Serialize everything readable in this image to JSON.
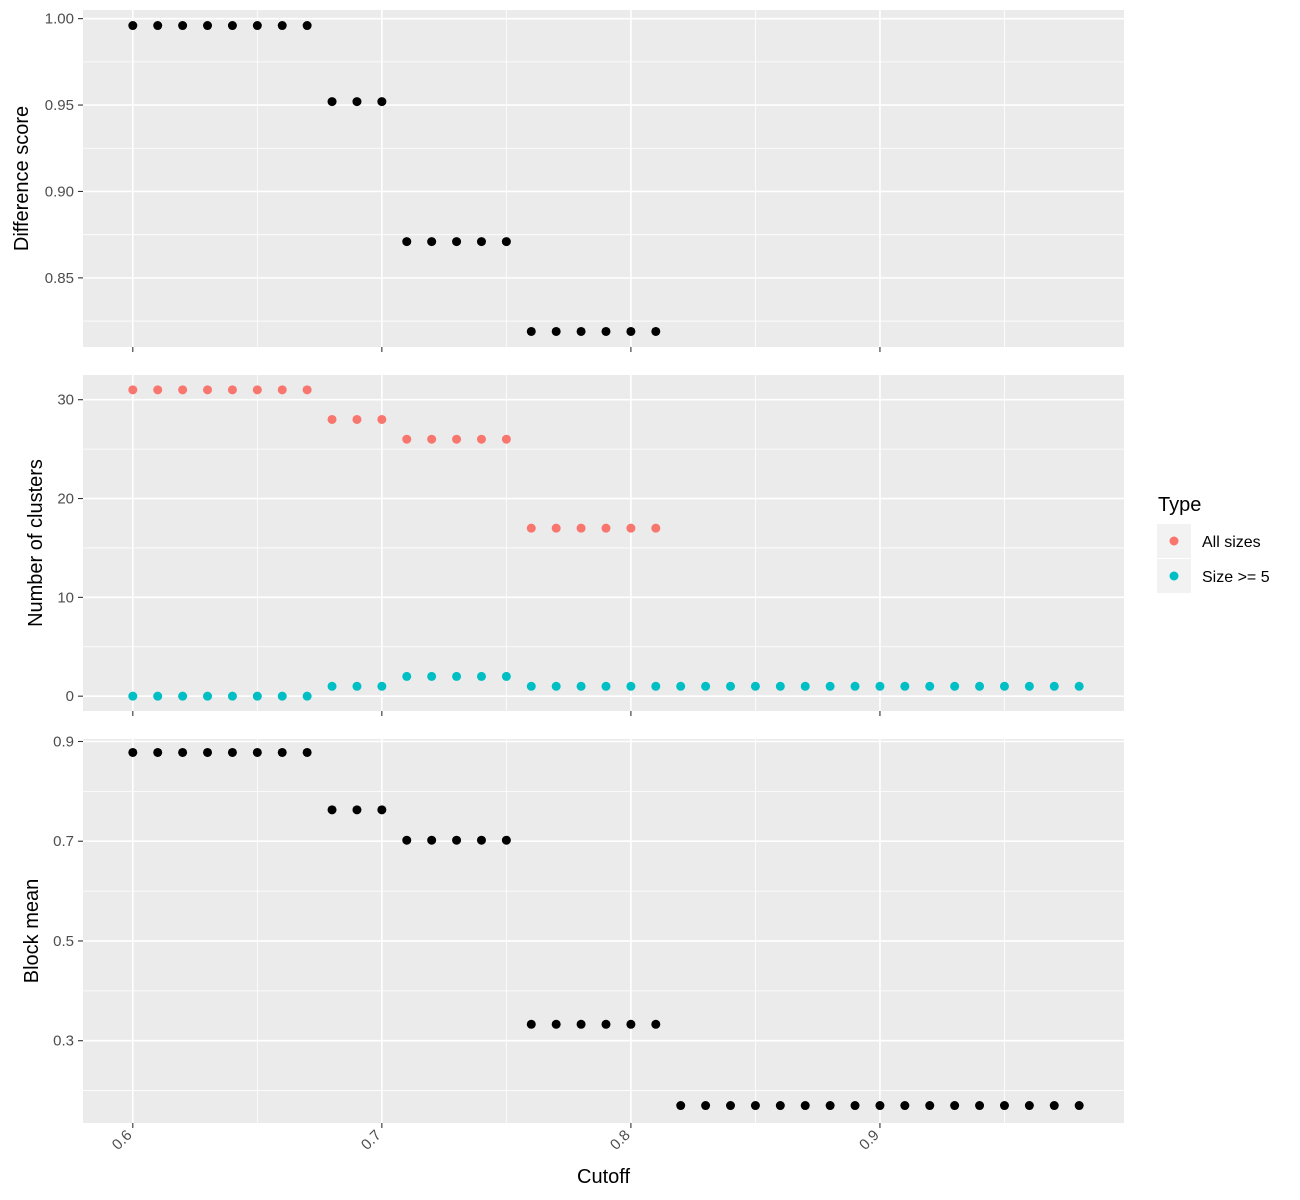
{
  "chart_data": [
    {
      "type": "scatter",
      "ylabel": "Difference score",
      "xlim": [
        0.58,
        0.998
      ],
      "ylim": [
        0.81,
        1.005
      ],
      "x_ticks": [
        "0.6",
        "0.7",
        "0.8",
        "0.9"
      ],
      "y_ticks": [
        "0.85",
        "0.90",
        "0.95",
        "1.00"
      ],
      "grid": true,
      "series": [
        {
          "color": "#000000",
          "x": [
            0.6,
            0.61,
            0.62,
            0.63,
            0.64,
            0.65,
            0.66,
            0.67,
            0.68,
            0.69,
            0.7,
            0.71,
            0.72,
            0.73,
            0.74,
            0.75,
            0.76,
            0.77,
            0.78,
            0.79,
            0.8,
            0.81
          ],
          "y": [
            0.996,
            0.996,
            0.996,
            0.996,
            0.996,
            0.996,
            0.996,
            0.996,
            0.952,
            0.952,
            0.952,
            0.871,
            0.871,
            0.871,
            0.871,
            0.871,
            0.819,
            0.819,
            0.819,
            0.819,
            0.819,
            0.819
          ]
        }
      ]
    },
    {
      "type": "scatter",
      "ylabel": "Number of clusters",
      "xlim": [
        0.58,
        0.998
      ],
      "ylim": [
        -1.5,
        32.5
      ],
      "x_ticks": [
        "0.6",
        "0.7",
        "0.8",
        "0.9"
      ],
      "y_ticks": [
        "0",
        "10",
        "20",
        "30"
      ],
      "grid": true,
      "legend": {
        "title": "Type",
        "placement": "right"
      },
      "series": [
        {
          "name": "All sizes",
          "color": "#F8766D",
          "x": [
            0.6,
            0.61,
            0.62,
            0.63,
            0.64,
            0.65,
            0.66,
            0.67,
            0.68,
            0.69,
            0.7,
            0.71,
            0.72,
            0.73,
            0.74,
            0.75,
            0.76,
            0.77,
            0.78,
            0.79,
            0.8,
            0.81
          ],
          "y": [
            31,
            31,
            31,
            31,
            31,
            31,
            31,
            31,
            28,
            28,
            28,
            26,
            26,
            26,
            26,
            26,
            17,
            17,
            17,
            17,
            17,
            17
          ]
        },
        {
          "name": "Size >= 5",
          "color": "#00BFC4",
          "x": [
            0.6,
            0.61,
            0.62,
            0.63,
            0.64,
            0.65,
            0.66,
            0.67,
            0.68,
            0.69,
            0.7,
            0.71,
            0.72,
            0.73,
            0.74,
            0.75,
            0.76,
            0.77,
            0.78,
            0.79,
            0.8,
            0.81,
            0.82,
            0.83,
            0.84,
            0.85,
            0.86,
            0.87,
            0.88,
            0.89,
            0.9,
            0.91,
            0.92,
            0.93,
            0.94,
            0.95,
            0.96,
            0.97,
            0.98
          ],
          "y": [
            0,
            0,
            0,
            0,
            0,
            0,
            0,
            0,
            1,
            1,
            1,
            2,
            2,
            2,
            2,
            2,
            1,
            1,
            1,
            1,
            1,
            1,
            1,
            1,
            1,
            1,
            1,
            1,
            1,
            1,
            1,
            1,
            1,
            1,
            1,
            1,
            1,
            1,
            1
          ]
        }
      ]
    },
    {
      "type": "scatter",
      "ylabel": "Block mean",
      "xlabel": "Cutoff",
      "xlim": [
        0.58,
        0.998
      ],
      "ylim": [
        0.135,
        0.905
      ],
      "x_ticks": [
        "0.6",
        "0.7",
        "0.8",
        "0.9"
      ],
      "y_ticks": [
        "0.3",
        "0.5",
        "0.7",
        "0.9"
      ],
      "grid": true,
      "series": [
        {
          "color": "#000000",
          "x": [
            0.6,
            0.61,
            0.62,
            0.63,
            0.64,
            0.65,
            0.66,
            0.67,
            0.68,
            0.69,
            0.7,
            0.71,
            0.72,
            0.73,
            0.74,
            0.75,
            0.76,
            0.77,
            0.78,
            0.79,
            0.8,
            0.81,
            0.82,
            0.83,
            0.84,
            0.85,
            0.86,
            0.87,
            0.88,
            0.89,
            0.9,
            0.91,
            0.92,
            0.93,
            0.94,
            0.95,
            0.96,
            0.97,
            0.98
          ],
          "y": [
            0.878,
            0.878,
            0.878,
            0.878,
            0.878,
            0.878,
            0.878,
            0.878,
            0.763,
            0.763,
            0.763,
            0.702,
            0.702,
            0.702,
            0.702,
            0.702,
            0.333,
            0.333,
            0.333,
            0.333,
            0.333,
            0.333,
            0.17,
            0.17,
            0.17,
            0.17,
            0.17,
            0.17,
            0.17,
            0.17,
            0.17,
            0.17,
            0.17,
            0.17,
            0.17,
            0.17,
            0.17,
            0.17,
            0.17
          ]
        }
      ]
    }
  ]
}
